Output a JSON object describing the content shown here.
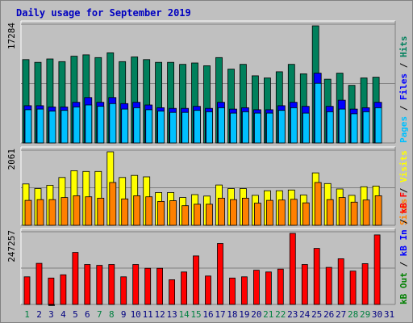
{
  "title": "Daily usage for September 2019",
  "colors": {
    "hits": "#00805c",
    "files": "#0000ff",
    "pages": "#00c0ff",
    "visits": "#ffff00",
    "sites": "#ff8000",
    "kb_f": "#ff0000",
    "kb_in": "#0000ff",
    "kb_out": "#008000",
    "weekend_day": "#008040",
    "weekday": "#000080",
    "today_marker": "#000000"
  },
  "chart_data": [
    {
      "type": "bar",
      "panel": "hits-files-pages",
      "categories": [
        "1",
        "2",
        "3",
        "4",
        "5",
        "6",
        "7",
        "8",
        "9",
        "10",
        "11",
        "12",
        "13",
        "14",
        "15",
        "16",
        "17",
        "18",
        "19",
        "20",
        "21",
        "22",
        "23",
        "24",
        "25",
        "26",
        "27",
        "28",
        "29",
        "30",
        "31"
      ],
      "weekend_days": [
        "1",
        "7",
        "8",
        "14",
        "15",
        "21",
        "22",
        "28",
        "29"
      ],
      "ymax_label": "17284",
      "ylim": [
        0,
        17284
      ],
      "right_labels": [
        {
          "text": "Hits",
          "color": "#00805c"
        },
        {
          "text": "Files",
          "color": "#0000ff"
        },
        {
          "text": "Pages",
          "color": "#00c0ff"
        }
      ],
      "separators": [
        "/",
        "/"
      ],
      "series": [
        {
          "name": "Hits",
          "color": "#00805c",
          "values": [
            12300,
            11900,
            12400,
            12000,
            12800,
            13000,
            12600,
            13300,
            12000,
            12700,
            12300,
            11900,
            11900,
            11600,
            11800,
            11400,
            12600,
            10900,
            11600,
            9900,
            9600,
            10500,
            11600,
            10200,
            17284,
            9400,
            10300,
            8500,
            9600,
            9700,
            null
          ]
        },
        {
          "name": "Files",
          "color": "#0000ff",
          "values": [
            5500,
            5500,
            5300,
            5300,
            6000,
            6700,
            6000,
            6700,
            5800,
            6000,
            5600,
            5200,
            5100,
            5100,
            5400,
            5100,
            6000,
            5000,
            5200,
            4900,
            4900,
            5500,
            6000,
            5400,
            10300,
            5400,
            6300,
            5000,
            5200,
            6000,
            null
          ]
        },
        {
          "name": "Pages",
          "color": "#00c0ff",
          "values": [
            4900,
            5000,
            4700,
            4800,
            5300,
            5600,
            5400,
            5800,
            5000,
            5200,
            4900,
            4700,
            4500,
            4500,
            4800,
            4600,
            5200,
            4400,
            4600,
            4400,
            4400,
            4800,
            5200,
            4400,
            8800,
            4600,
            5000,
            4300,
            4600,
            5200,
            null
          ]
        }
      ]
    },
    {
      "type": "bar",
      "panel": "visits-sites",
      "categories": [
        "1",
        "2",
        "3",
        "4",
        "5",
        "6",
        "7",
        "8",
        "9",
        "10",
        "11",
        "12",
        "13",
        "14",
        "15",
        "16",
        "17",
        "18",
        "19",
        "20",
        "21",
        "22",
        "23",
        "24",
        "25",
        "26",
        "27",
        "28",
        "29",
        "30",
        "31"
      ],
      "ymax_label": "2061",
      "ylim": [
        0,
        2061
      ],
      "right_labels": [
        {
          "text": "Visits",
          "color": "#ffff00"
        },
        {
          "text": "Sites",
          "color": "#ff8000"
        }
      ],
      "separators": [
        "/"
      ],
      "series": [
        {
          "name": "Visits",
          "color": "#ffff00",
          "values": [
            1160,
            1030,
            1120,
            1340,
            1530,
            1510,
            1510,
            2061,
            1340,
            1400,
            1360,
            920,
            920,
            780,
            860,
            820,
            1130,
            1030,
            1030,
            840,
            970,
            970,
            990,
            850,
            1470,
            1170,
            1020,
            840,
            1080,
            1100,
            null
          ]
        },
        {
          "name": "Sites",
          "color": "#ff8000",
          "values": [
            700,
            720,
            720,
            780,
            830,
            800,
            760,
            1200,
            740,
            830,
            800,
            670,
            690,
            550,
            590,
            590,
            760,
            720,
            760,
            620,
            700,
            710,
            730,
            630,
            1200,
            720,
            780,
            650,
            710,
            830,
            null
          ]
        }
      ]
    },
    {
      "type": "bar",
      "panel": "kbytes",
      "categories": [
        "1",
        "2",
        "3",
        "4",
        "5",
        "6",
        "7",
        "8",
        "9",
        "10",
        "11",
        "12",
        "13",
        "14",
        "15",
        "16",
        "17",
        "18",
        "19",
        "20",
        "21",
        "22",
        "23",
        "24",
        "25",
        "26",
        "27",
        "28",
        "29",
        "30",
        "31"
      ],
      "ymax_label": "247257",
      "ylim": [
        0,
        247257
      ],
      "right_labels": [
        {
          "text": "kB F",
          "color": "#ff0000"
        },
        {
          "text": "kB In",
          "color": "#0000ff"
        },
        {
          "text": "kB Out",
          "color": "#008000"
        }
      ],
      "separators": [
        "/",
        "/"
      ],
      "series": [
        {
          "name": "kB F",
          "color": "#ff0000",
          "values": [
            96000,
            143000,
            92000,
            103000,
            181000,
            139000,
            136000,
            139000,
            96000,
            139000,
            126000,
            126000,
            86000,
            113000,
            169000,
            99000,
            212000,
            92000,
            96000,
            119000,
            113000,
            123000,
            247257,
            139000,
            195000,
            129000,
            159000,
            116000,
            142000,
            242000,
            null
          ]
        }
      ]
    }
  ],
  "x_axis_labels": [
    "1",
    "2",
    "3",
    "4",
    "5",
    "6",
    "7",
    "8",
    "9",
    "10",
    "11",
    "12",
    "13",
    "14",
    "15",
    "16",
    "17",
    "18",
    "19",
    "20",
    "21",
    "22",
    "23",
    "24",
    "25",
    "26",
    "27",
    "28",
    "29",
    "30",
    "31"
  ]
}
